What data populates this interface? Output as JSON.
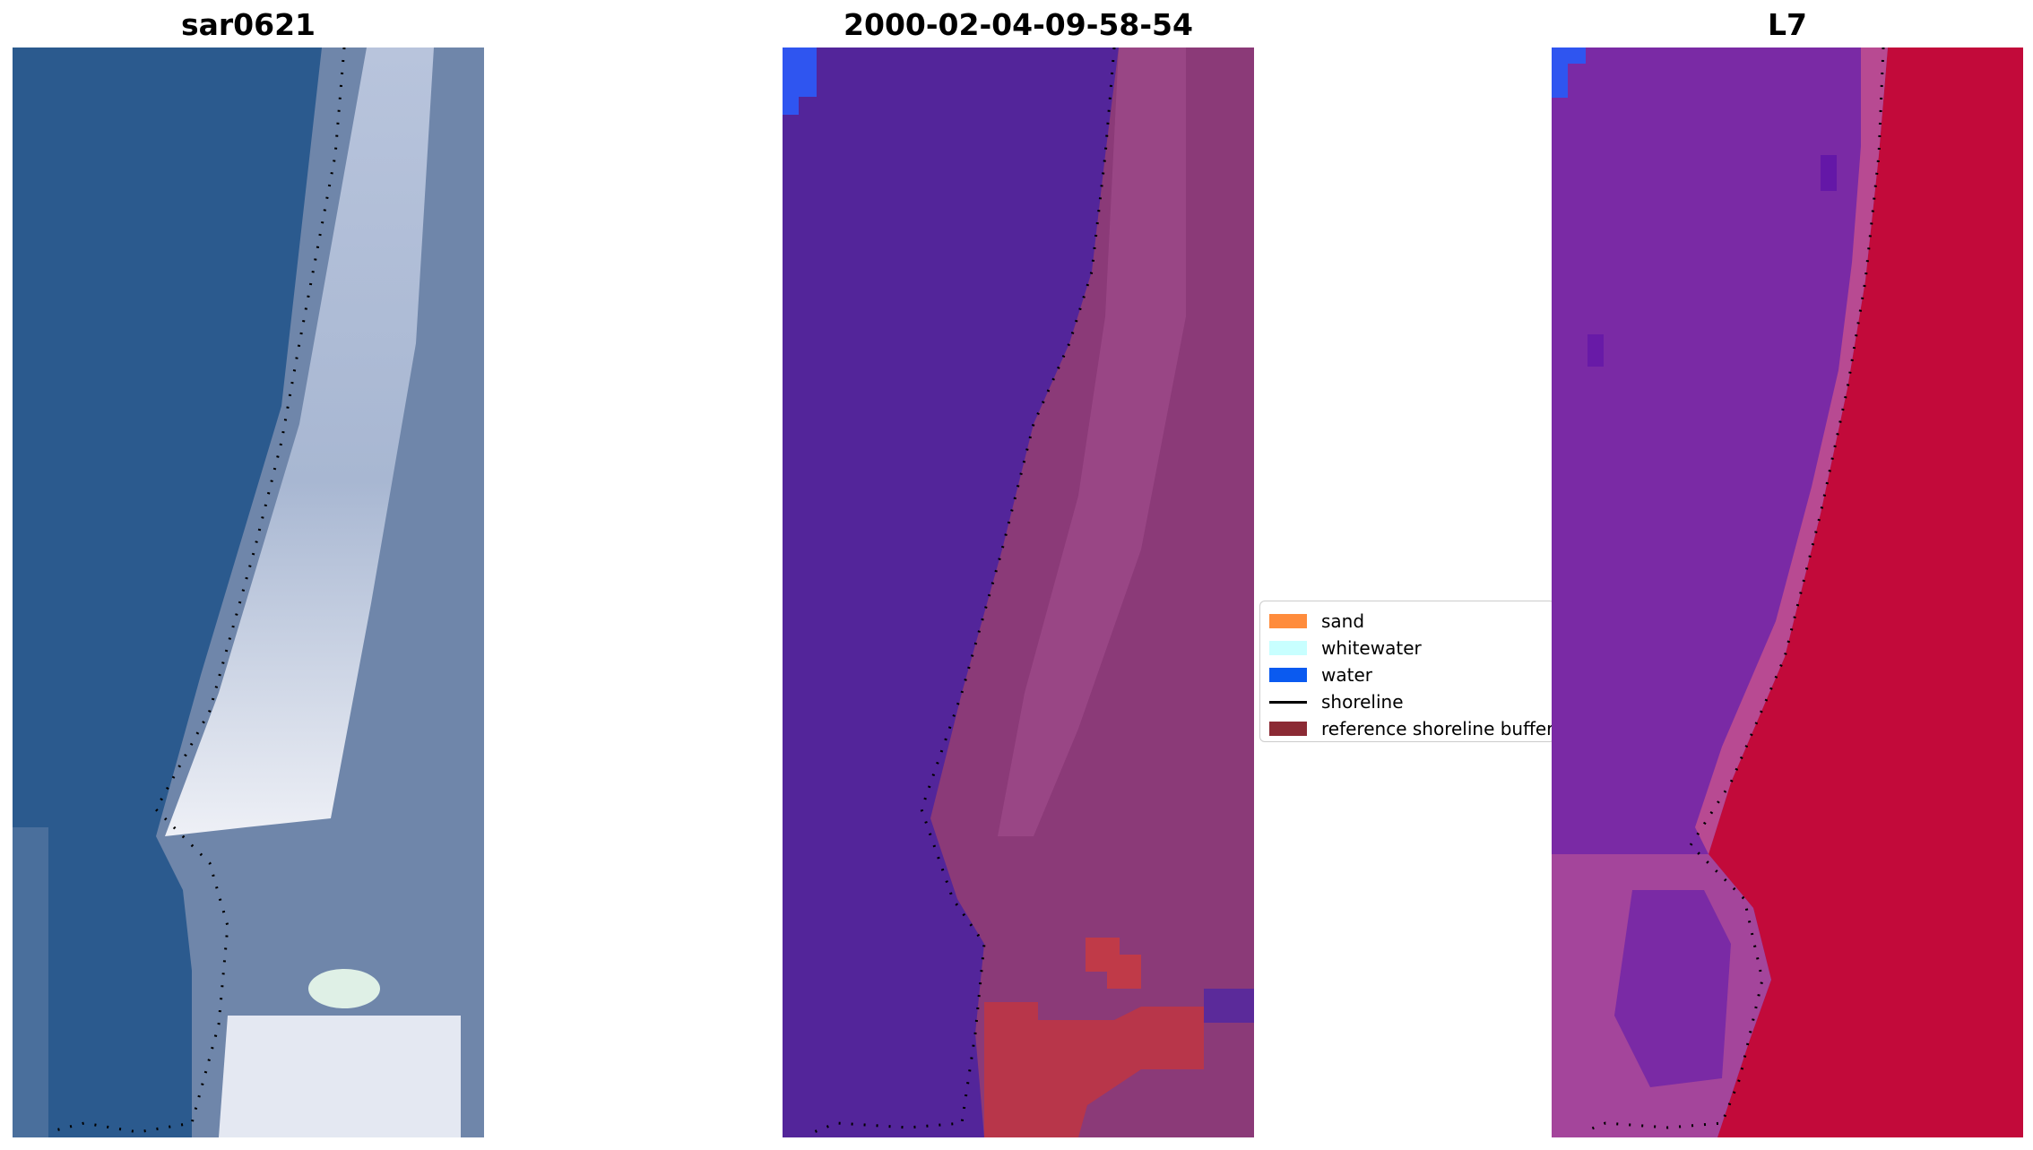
{
  "panels": [
    {
      "title": "sar0621",
      "style": "rgb"
    },
    {
      "title": "2000-02-04-09-58-54",
      "style": "classified"
    },
    {
      "title": "L7",
      "style": "index"
    }
  ],
  "legend": {
    "items": [
      {
        "label": "sand",
        "kind": "patch",
        "color": "#ff8c3c"
      },
      {
        "label": "whitewater",
        "kind": "patch",
        "color": "#c8ffff"
      },
      {
        "label": "water",
        "kind": "patch",
        "color": "#0a5af0"
      },
      {
        "label": "shoreline",
        "kind": "line",
        "color": "#000000"
      },
      {
        "label": "reference shoreline buffer",
        "kind": "patch",
        "color": "#8b2a34"
      }
    ]
  },
  "colors": {
    "ocean_rgb": "#2b5a8e",
    "beach_rgb": "#c0cade",
    "classified_water": "#53259a",
    "classified_land": "#8b3a78",
    "classified_buffer": "#b8364a",
    "index_water": "#7a2aa5",
    "index_land": "#c20a3a"
  }
}
